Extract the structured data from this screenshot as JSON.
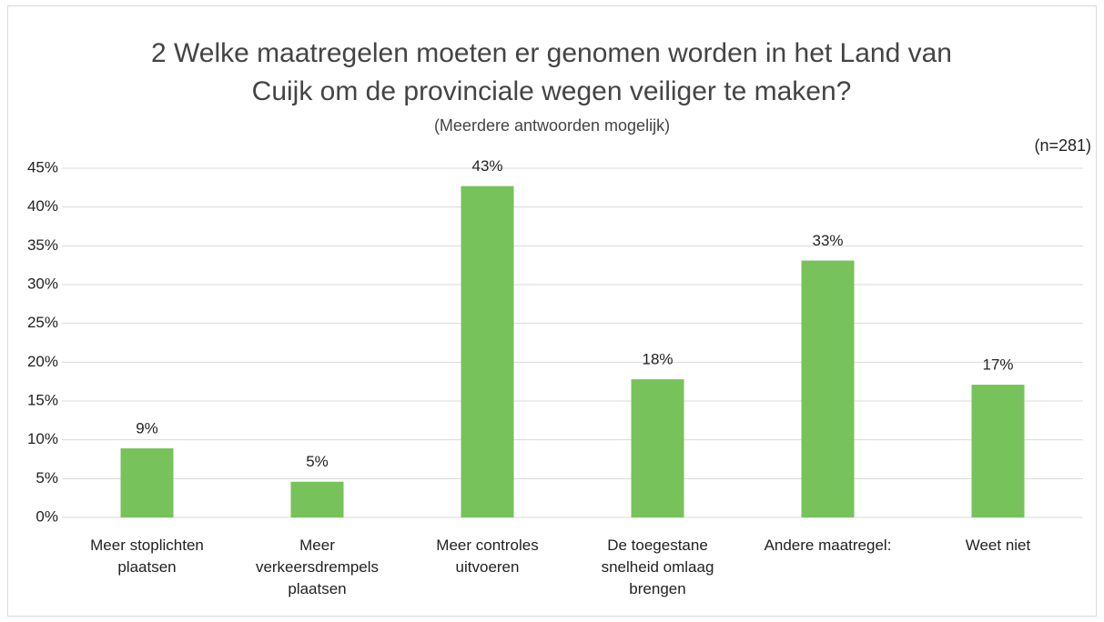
{
  "chart_data": {
    "type": "bar",
    "title": "2 Welke maatregelen moeten er genomen worden in het Land van Cuijk om de provinciale wegen veiliger te maken?",
    "subtitle": "(Meerdere antwoorden mogelijk)",
    "annotation": "(n=281)",
    "categories": [
      "Meer stoplichten plaatsen",
      "Meer verkeersdrempels plaatsen",
      "Meer controles uitvoeren",
      "De toegestane snelheid omlaag brengen",
      "Andere maatregel:",
      "Weet niet"
    ],
    "values": [
      8.9,
      4.6,
      42.7,
      17.8,
      33.1,
      17.1
    ],
    "value_labels": [
      "9%",
      "5%",
      "43%",
      "18%",
      "33%",
      "17%"
    ],
    "color": "#77c25a",
    "ylim": [
      0,
      45
    ],
    "yticks": [
      {
        "value": 0,
        "label": "0%"
      },
      {
        "value": 5,
        "label": "5%"
      },
      {
        "value": 10,
        "label": "10%"
      },
      {
        "value": 15,
        "label": "15%"
      },
      {
        "value": 20,
        "label": "20%"
      },
      {
        "value": 25,
        "label": "25%"
      },
      {
        "value": 30,
        "label": "30%"
      },
      {
        "value": 35,
        "label": "35%"
      },
      {
        "value": 40,
        "label": "40%"
      },
      {
        "value": 45,
        "label": "45%"
      }
    ],
    "grid": true
  }
}
